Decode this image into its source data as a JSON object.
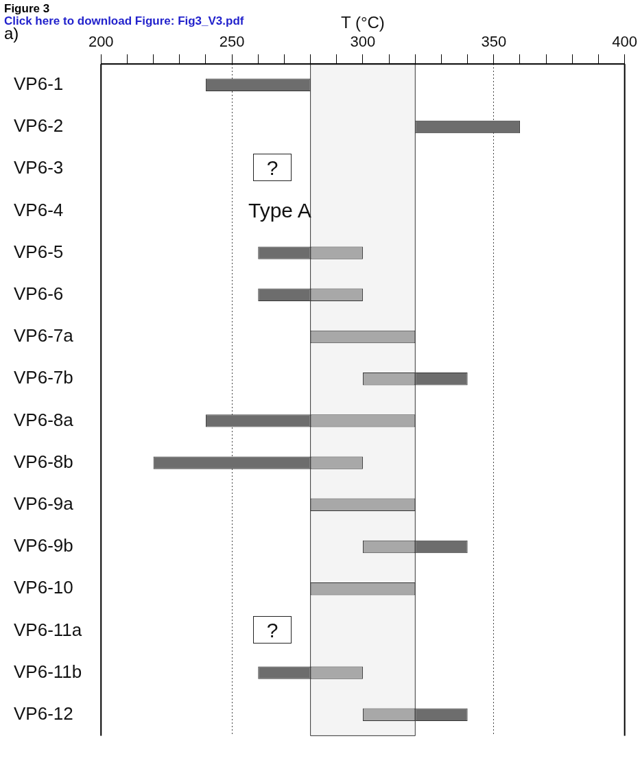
{
  "chart_data": {
    "type": "bar",
    "orientation": "horizontal",
    "xlabel": "T (°C)",
    "categories": [
      "VP6-1",
      "VP6-2",
      "VP6-3",
      "VP6-4",
      "VP6-5",
      "VP6-6",
      "VP6-7a",
      "VP6-7b",
      "VP6-8a",
      "VP6-8b",
      "VP6-9a",
      "VP6-9b",
      "VP6-10",
      "VP6-11a",
      "VP6-11b",
      "VP6-12"
    ],
    "series": [
      {
        "color": "#6d6d6d",
        "base": [
          240,
          320,
          null,
          null,
          260,
          260,
          null,
          320,
          240,
          220,
          null,
          320,
          null,
          null,
          260,
          320
        ],
        "values": [
          40,
          40,
          null,
          null,
          20,
          20,
          null,
          20,
          40,
          60,
          null,
          20,
          null,
          null,
          20,
          20
        ]
      },
      {
        "color": "#a8a8a8",
        "base": [
          null,
          null,
          null,
          null,
          280,
          280,
          280,
          300,
          280,
          280,
          280,
          300,
          280,
          null,
          280,
          300
        ],
        "values": [
          null,
          null,
          null,
          null,
          20,
          20,
          40,
          20,
          40,
          20,
          40,
          20,
          40,
          null,
          20,
          20
        ]
      }
    ],
    "xlim": [
      200,
      400
    ],
    "xticks": [
      200,
      {
        "value": 210,
        "label": null
      },
      {
        "value": 220,
        "label": null
      },
      {
        "value": 230,
        "label": null
      },
      {
        "value": 240,
        "label": null
      },
      250,
      {
        "value": 260,
        "label": null
      },
      {
        "value": 270,
        "label": null
      },
      {
        "value": 280,
        "label": null
      },
      {
        "value": 290,
        "label": null
      },
      300,
      {
        "value": 310,
        "label": null
      },
      {
        "value": 320,
        "label": null
      },
      {
        "value": 330,
        "label": null
      },
      {
        "value": 340,
        "label": null
      },
      350,
      {
        "value": 360,
        "label": null
      },
      {
        "value": 370,
        "label": null
      },
      {
        "value": 380,
        "label": null
      },
      {
        "value": 390,
        "label": null
      },
      400
    ],
    "bands": [
      {
        "axis": "x",
        "from": 280,
        "to": 320,
        "color": "#f4f4f4"
      }
    ],
    "grid": "x",
    "legend": false,
    "annotations": [
      "Figure 3",
      "Click here to download Figure: Fig3_V3.pdf",
      "a)",
      "?",
      "Type A",
      "?"
    ]
  }
}
